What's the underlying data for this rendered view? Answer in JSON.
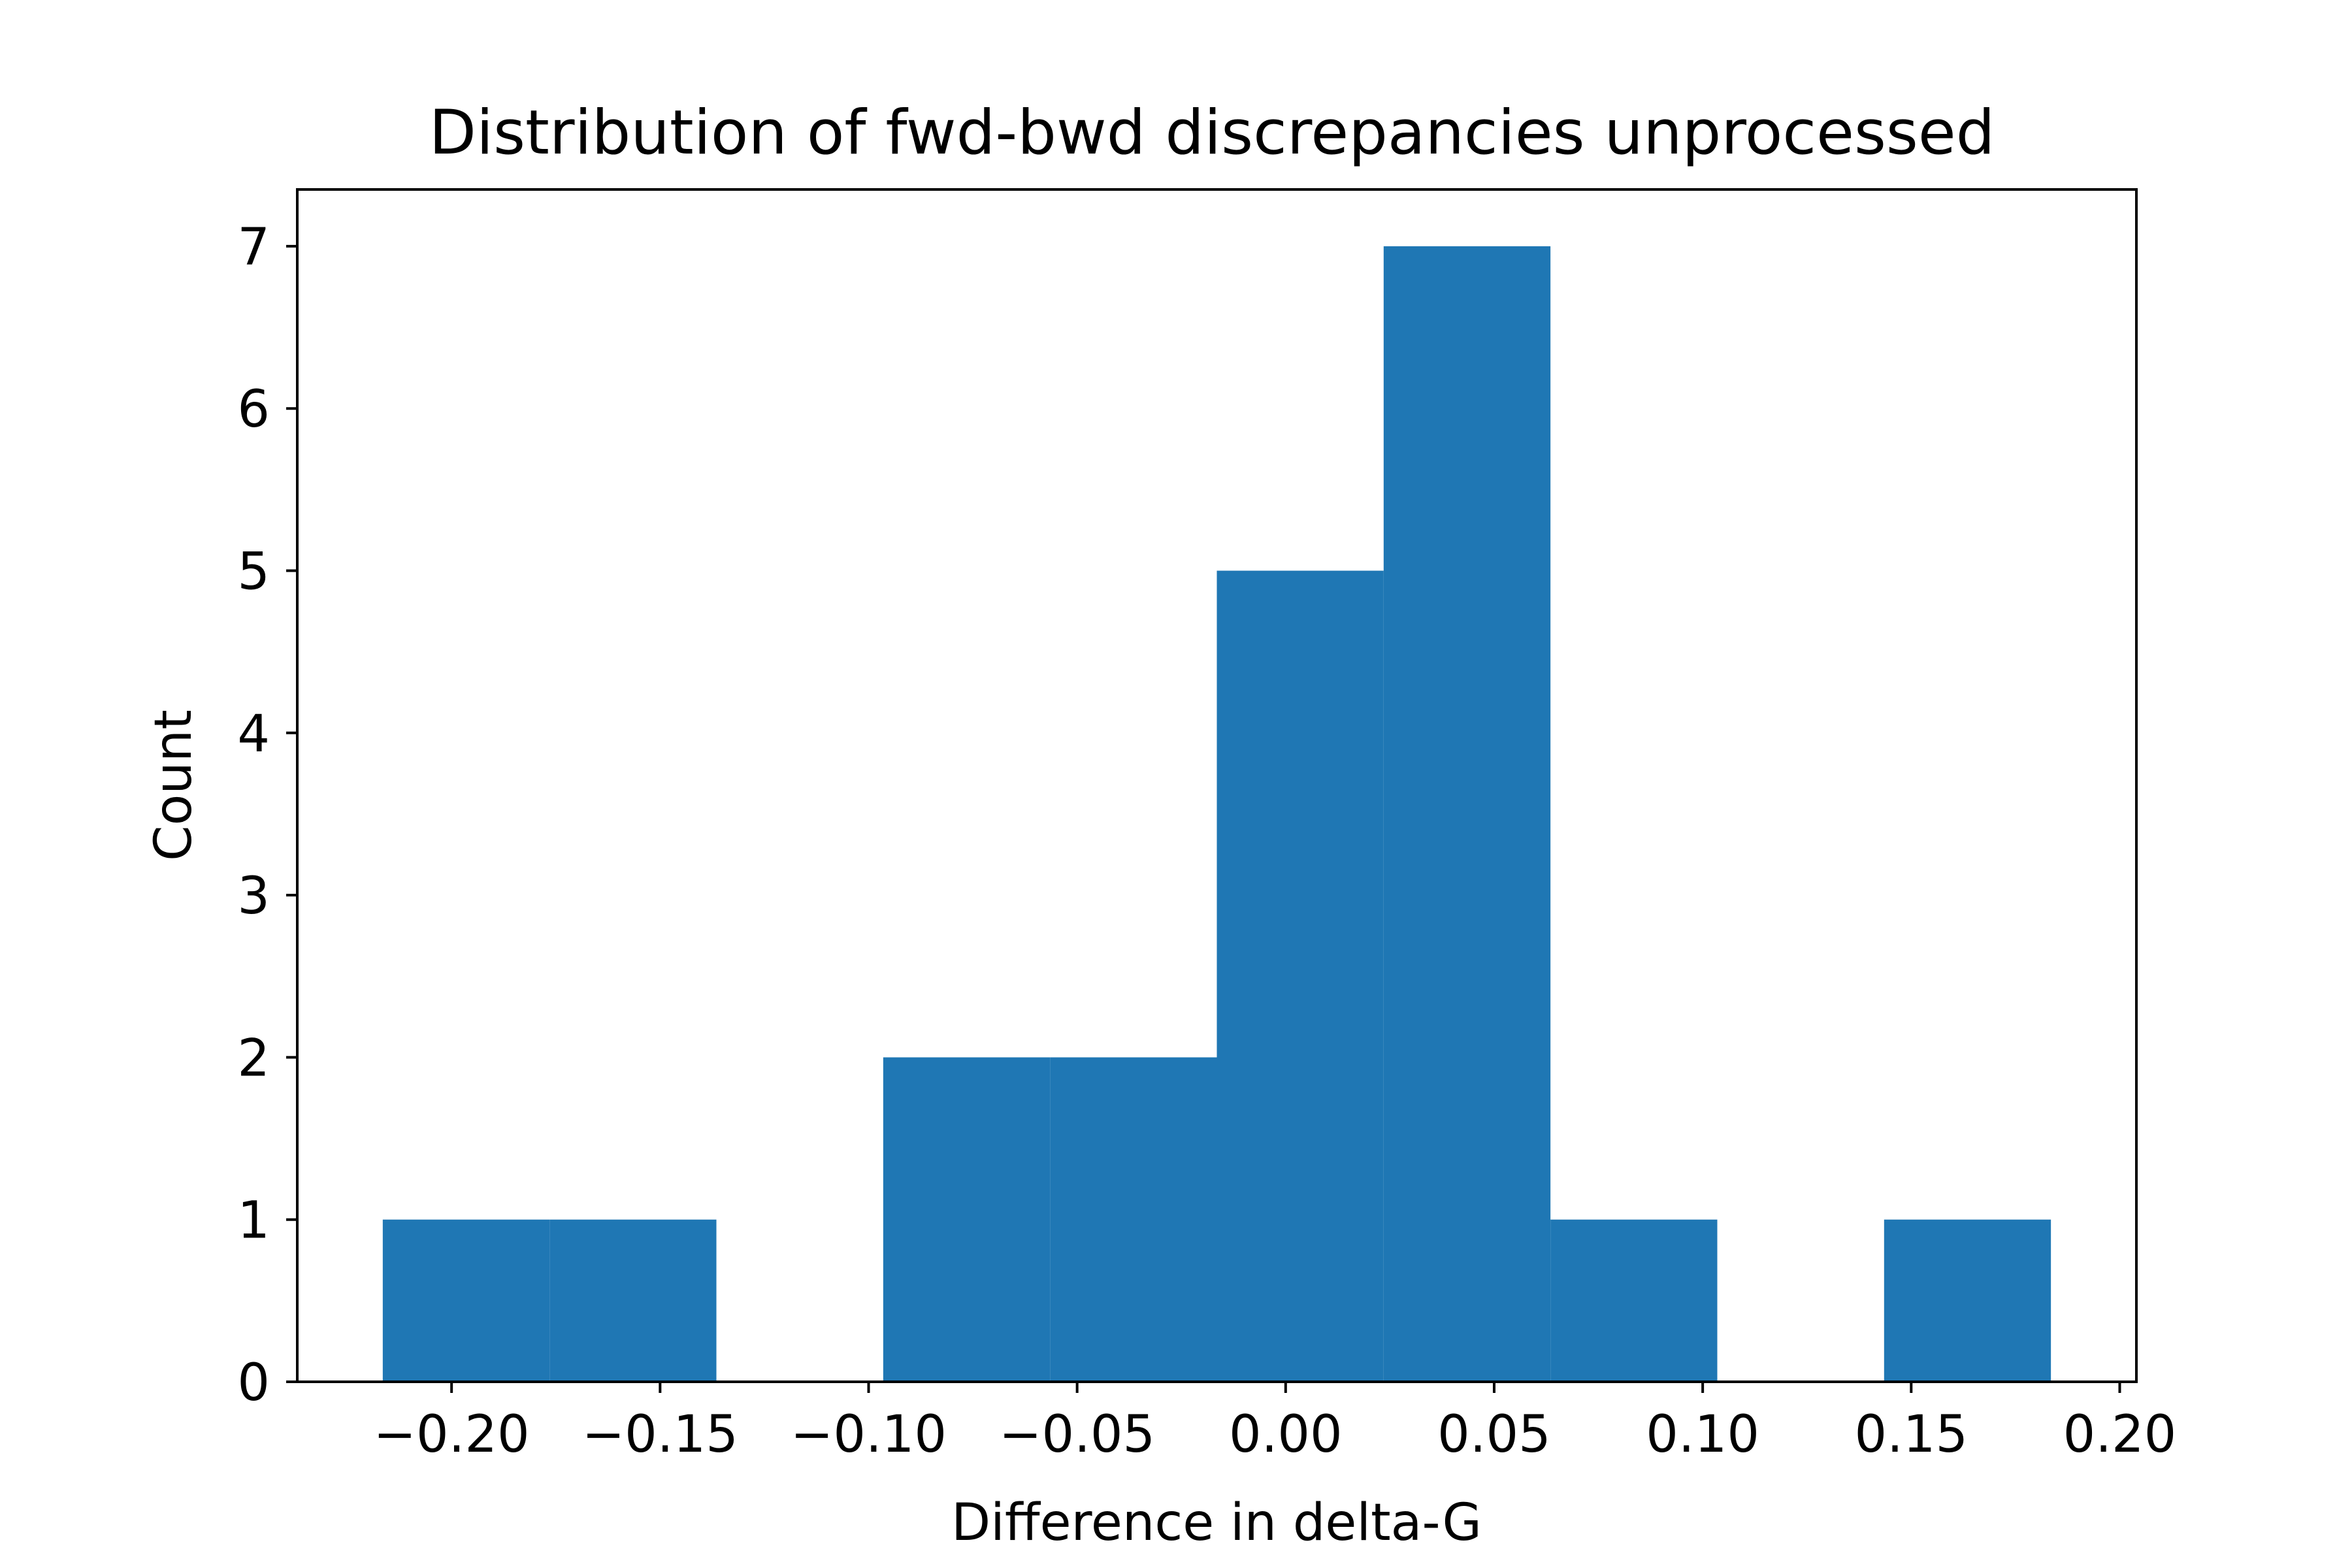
{
  "chart_data": {
    "type": "bar",
    "title": "Distribution of fwd-bwd discrepancies unprocessed",
    "xlabel": "Difference in delta-G",
    "ylabel": "Count",
    "xlim": [
      -0.237,
      0.204
    ],
    "ylim": [
      0,
      7.35
    ],
    "bin_edges": [
      -0.2165,
      -0.1765,
      -0.1365,
      -0.0965,
      -0.0565,
      -0.0165,
      0.0235,
      0.0635,
      0.1035,
      0.1435,
      0.1835
    ],
    "values": [
      1,
      1,
      0,
      2,
      2,
      5,
      7,
      1,
      0,
      1
    ],
    "x_ticks": [
      -0.2,
      -0.15,
      -0.1,
      -0.05,
      0.0,
      0.05,
      0.1,
      0.15,
      0.2
    ],
    "x_tick_labels": [
      "−0.20",
      "−0.15",
      "−0.10",
      "−0.05",
      "0.00",
      "0.05",
      "0.10",
      "0.15",
      "0.20"
    ],
    "y_ticks": [
      0,
      1,
      2,
      3,
      4,
      5,
      6,
      7
    ],
    "y_tick_labels": [
      "0",
      "1",
      "2",
      "3",
      "4",
      "5",
      "6",
      "7"
    ],
    "bar_color": "#1f77b4",
    "grid": false,
    "legend": "none"
  }
}
